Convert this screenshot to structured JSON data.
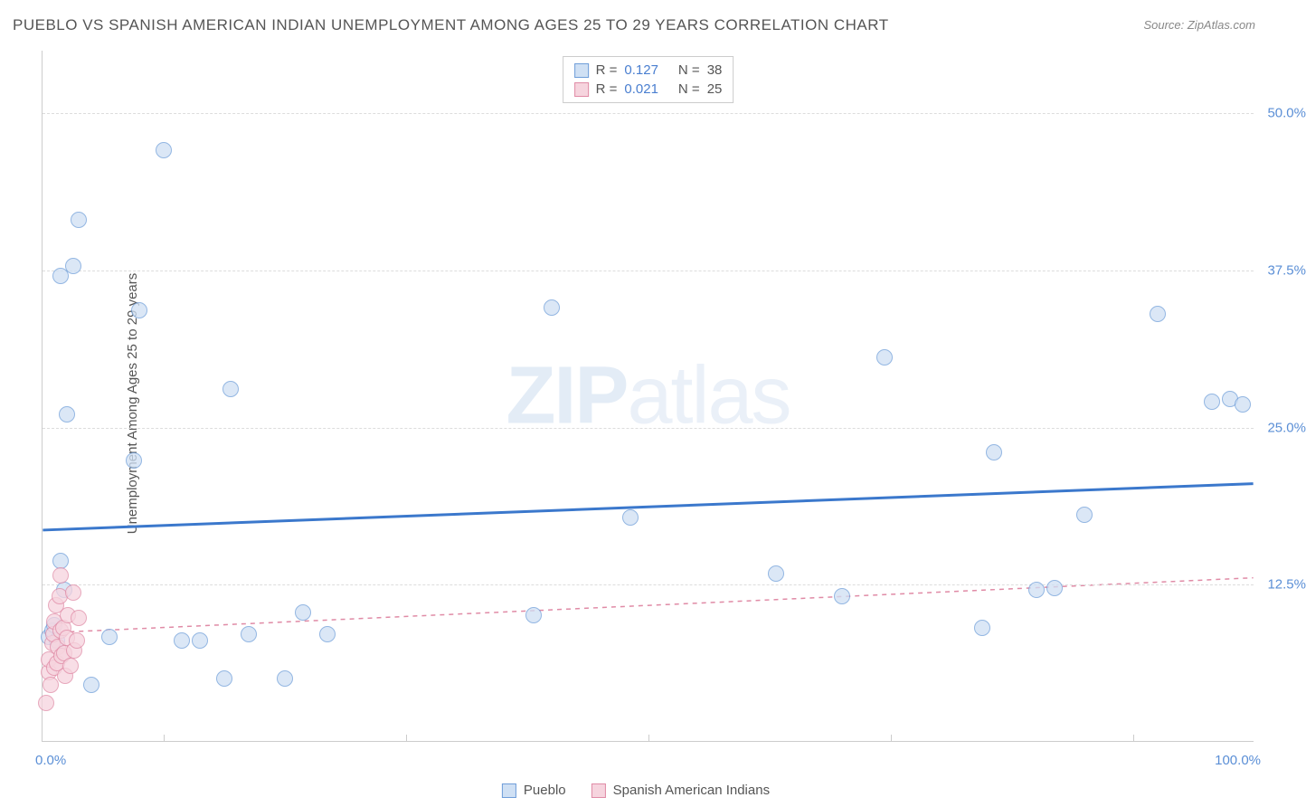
{
  "title": "PUEBLO VS SPANISH AMERICAN INDIAN UNEMPLOYMENT AMONG AGES 25 TO 29 YEARS CORRELATION CHART",
  "source": "Source: ZipAtlas.com",
  "ylabel": "Unemployment Among Ages 25 to 29 years",
  "watermark_bold": "ZIP",
  "watermark_rest": "atlas",
  "chart": {
    "type": "scatter",
    "background_color": "#ffffff",
    "grid_color": "#dddddd",
    "axis_color": "#cccccc",
    "tick_label_color": "#5b8fd6",
    "text_color": "#555555",
    "xlim": [
      0,
      100
    ],
    "ylim": [
      0,
      55
    ],
    "xticks_minor": [
      10,
      30,
      50,
      70,
      90
    ],
    "yticks": [
      {
        "v": 12.5,
        "label": "12.5%"
      },
      {
        "v": 25.0,
        "label": "25.0%"
      },
      {
        "v": 37.5,
        "label": "37.5%"
      },
      {
        "v": 50.0,
        "label": "50.0%"
      }
    ],
    "xlabel_min": "0.0%",
    "xlabel_max": "100.0%",
    "marker_radius": 9,
    "series": [
      {
        "name": "Pueblo",
        "fill": "#cfe0f4",
        "stroke": "#6f9ed9",
        "fill_opacity": 0.75,
        "R": "0.127",
        "N": "38",
        "trend": {
          "y_at_x0": 16.8,
          "y_at_x100": 20.5,
          "stroke": "#3b78cc",
          "width": 3,
          "dash": "none"
        },
        "points": [
          [
            0.5,
            8.3
          ],
          [
            0.8,
            8.8
          ],
          [
            1.0,
            9.2
          ],
          [
            1.2,
            8.0
          ],
          [
            1.5,
            14.3
          ],
          [
            1.5,
            37.0
          ],
          [
            1.8,
            12.0
          ],
          [
            2.0,
            26.0
          ],
          [
            2.5,
            37.8
          ],
          [
            3.0,
            41.5
          ],
          [
            4.0,
            4.5
          ],
          [
            5.5,
            8.3
          ],
          [
            7.5,
            22.3
          ],
          [
            8.0,
            34.3
          ],
          [
            10.0,
            47.0
          ],
          [
            11.5,
            8.0
          ],
          [
            13.0,
            8.0
          ],
          [
            15.0,
            5.0
          ],
          [
            15.5,
            28.0
          ],
          [
            17.0,
            8.5
          ],
          [
            20.0,
            5.0
          ],
          [
            21.5,
            10.2
          ],
          [
            23.5,
            8.5
          ],
          [
            40.5,
            10.0
          ],
          [
            42.0,
            34.5
          ],
          [
            48.5,
            17.8
          ],
          [
            60.5,
            13.3
          ],
          [
            66.0,
            11.5
          ],
          [
            69.5,
            30.5
          ],
          [
            77.5,
            9.0
          ],
          [
            78.5,
            23.0
          ],
          [
            82.0,
            12.0
          ],
          [
            83.5,
            12.2
          ],
          [
            86.0,
            18.0
          ],
          [
            92.0,
            34.0
          ],
          [
            96.5,
            27.0
          ],
          [
            98.0,
            27.2
          ],
          [
            99.0,
            26.8
          ]
        ]
      },
      {
        "name": "Spanish American Indians",
        "fill": "#f6d4de",
        "stroke": "#e08ba6",
        "fill_opacity": 0.75,
        "R": "0.021",
        "N": "25",
        "trend": {
          "y_at_x0": 8.6,
          "y_at_x100": 13.0,
          "stroke": "#e08ba6",
          "width": 1.5,
          "dash": "5,5"
        },
        "points": [
          [
            0.3,
            3.0
          ],
          [
            0.5,
            5.5
          ],
          [
            0.5,
            6.5
          ],
          [
            0.7,
            4.5
          ],
          [
            0.8,
            7.8
          ],
          [
            0.9,
            8.5
          ],
          [
            1.0,
            5.8
          ],
          [
            1.0,
            9.5
          ],
          [
            1.1,
            10.8
          ],
          [
            1.2,
            6.2
          ],
          [
            1.3,
            7.5
          ],
          [
            1.4,
            11.5
          ],
          [
            1.5,
            8.8
          ],
          [
            1.5,
            13.2
          ],
          [
            1.6,
            6.8
          ],
          [
            1.7,
            9.0
          ],
          [
            1.8,
            7.0
          ],
          [
            1.9,
            5.2
          ],
          [
            2.0,
            8.2
          ],
          [
            2.1,
            10.0
          ],
          [
            2.3,
            6.0
          ],
          [
            2.5,
            11.8
          ],
          [
            2.6,
            7.2
          ],
          [
            2.8,
            8.0
          ],
          [
            3.0,
            9.8
          ]
        ]
      }
    ]
  },
  "bottom_legend": [
    {
      "swatch_fill": "#cfe0f4",
      "swatch_stroke": "#6f9ed9",
      "label": "Pueblo"
    },
    {
      "swatch_fill": "#f6d4de",
      "swatch_stroke": "#e08ba6",
      "label": "Spanish American Indians"
    }
  ]
}
